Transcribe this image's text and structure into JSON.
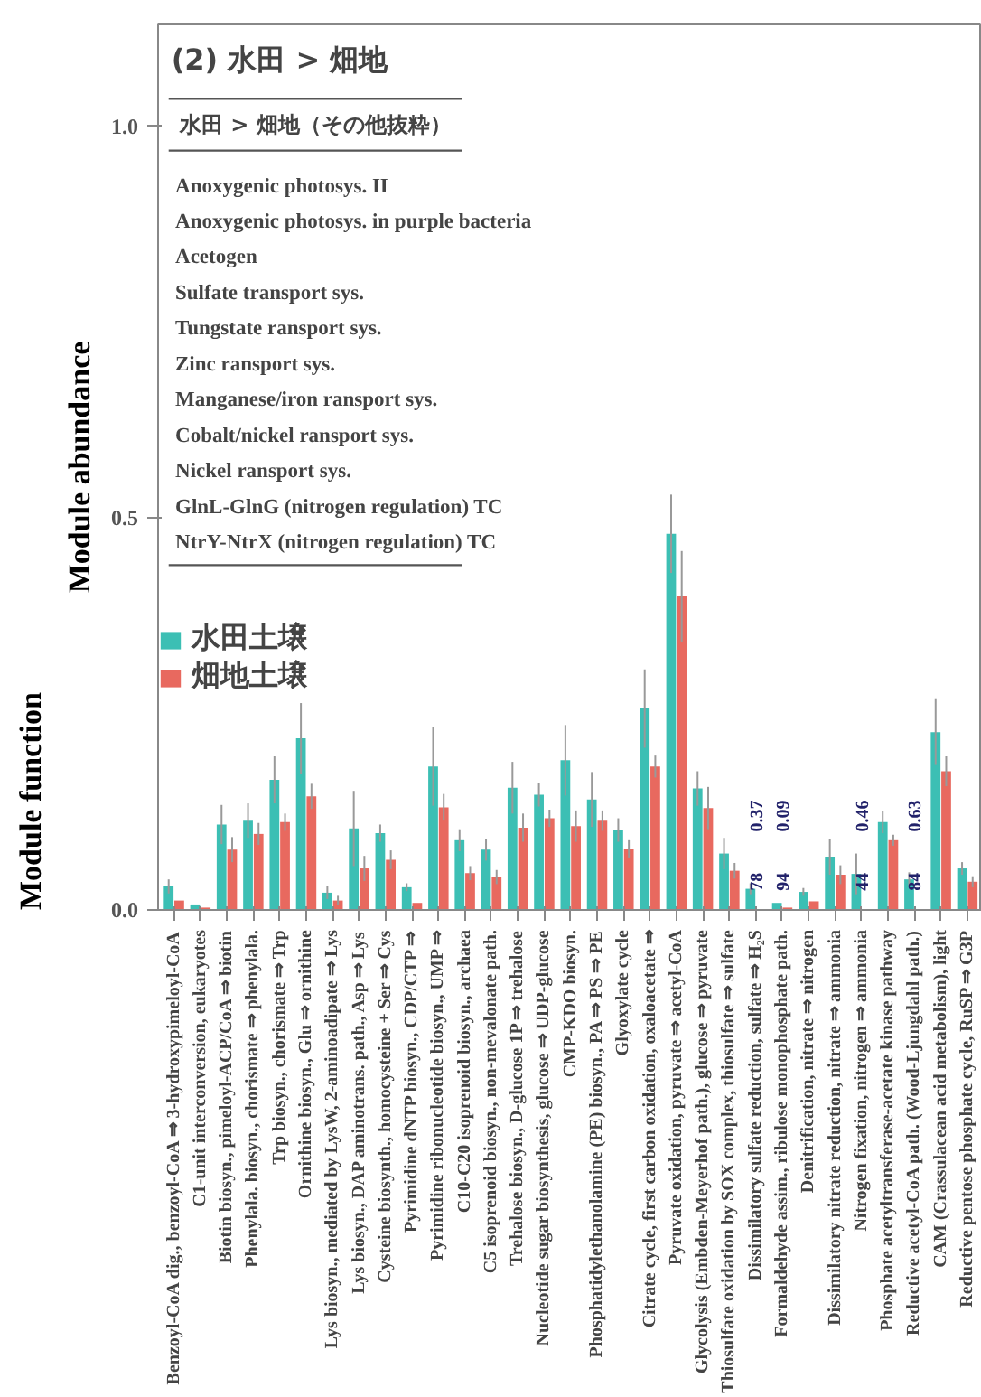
{
  "chart_data": {
    "type": "bar",
    "title": "(2) 水田 > 畑地",
    "ylabel": "Module abundance",
    "categories": [
      "Benzoyl-CoA dig., benzoyl-CoA ⇒ 3-hydroxypimeloyl-CoA",
      "C1-unit interconversion, eukaryotes",
      "Biotin biosyn., pimeloyl-ACP/CoA ⇒ biotin",
      "Phenylala. biosyn., chorismate ⇒ phenylala.",
      "Trp biosyn., chorismate ⇒ Trp",
      "Ornithine biosyn., Glu ⇒ ornithine",
      "Lys biosyn., mediated by LysW, 2-aminoadipate ⇒ Lys",
      "Lys biosyn., DAP aminotrans. path., Asp ⇒ Lys",
      "Cysteine biosynth., homocysteine + Ser ⇒ Cys",
      "Pyrimidine dNTP biosyn., CDP/CTP ⇒",
      "Pyrimidine ribonucleotide biosyn., UMP ⇒",
      "C10-C20 isoprenoid biosyn., archaea",
      "C5 isoprenoid biosyn., non-mevalonate path.",
      "Trehalose biosyn., D-glucose 1P ⇒ trehalose",
      "Nucleotide sugar biosynthesis, glucose ⇒ UDP-glucose",
      "CMP-KDO biosyn.",
      "Phosphatidylethanolamine (PE) biosyn., PA ⇒ PS ⇒ PE",
      "Glyoxylate cycle",
      "Citrate cycle, first carbon oxidation, oxaloacetate ⇒",
      "Pyruvate oxidation, pyruvate ⇒ acetyl-CoA",
      "Glycolysis (Embden-Meyerhof path.), glucose ⇒ pyruvate",
      "Thiosulfate oxidation by SOX complex, thiosulfate ⇒ sulfate",
      "Dissimilatory sulfate reduction, sulfate ⇒ H₂S",
      "Formaldehyde assim., ribulose monophosphate path.",
      "Denitrification, nitrate ⇒ nitrogen",
      "Dissimilatory nitrate reduction, nitrate ⇒ ammonia",
      "Nitrogen fixation, nitrogen ⇒ ammonia",
      "Phosphate acetyltransferase-acetate kinase pathway",
      "Reductive acetyl-CoA path. (Wood-Ljungdahl path.)",
      "CAM (Crassulacean acid metabolism), light",
      "Reductive pentose phosphate cycle, RuSP ⇒ G3P"
    ],
    "series": [
      {
        "name": "水田土壌",
        "color": "#3cbfb4",
        "values": [
          0.03,
          0.007,
          0.109,
          0.114,
          0.166,
          0.219,
          0.022,
          0.104,
          0.098,
          0.029,
          0.183,
          0.089,
          0.077,
          0.156,
          0.147,
          0.191,
          0.141,
          0.102,
          0.257,
          0.48,
          0.155,
          0.072,
          0.027,
          0.009,
          0.023,
          0.068,
          0.046,
          0.112,
          0.039,
          0.227,
          0.053
        ],
        "errors": [
          0.009,
          null,
          0.025,
          0.022,
          0.03,
          0.045,
          0.008,
          0.048,
          0.011,
          0.005,
          0.05,
          0.014,
          0.014,
          0.033,
          0.015,
          0.045,
          0.035,
          0.015,
          0.05,
          0.05,
          0.022,
          0.02,
          0.007,
          null,
          0.005,
          0.023,
          0.026,
          0.014,
          0.009,
          0.042,
          0.008
        ]
      },
      {
        "name": "畑地土壌",
        "color": "#e8695f",
        "values": [
          0.012,
          0.003,
          0.077,
          0.097,
          0.112,
          0.145,
          0.012,
          0.053,
          0.064,
          0.009,
          0.131,
          0.047,
          0.042,
          0.105,
          0.117,
          0.107,
          0.114,
          0.078,
          0.183,
          0.4,
          0.13,
          0.05,
          null,
          0.003,
          0.011,
          0.045,
          null,
          0.089,
          null,
          0.177,
          0.036
        ],
        "errors": [
          null,
          null,
          0.016,
          0.014,
          0.011,
          0.016,
          0.006,
          0.016,
          0.012,
          null,
          0.017,
          0.009,
          0.009,
          0.018,
          0.011,
          0.02,
          0.013,
          0.011,
          0.014,
          0.058,
          0.027,
          0.01,
          null,
          null,
          null,
          0.012,
          null,
          0.007,
          null,
          0.019,
          0.007
        ]
      }
    ],
    "ylim": [
      0,
      1.13
    ],
    "yticks": [
      {
        "value": 0,
        "label": "0.0"
      },
      {
        "value": 0.5,
        "label": "0.5"
      },
      {
        "value": 1,
        "label": "1.0"
      }
    ],
    "legend": "left",
    "grid": false,
    "annotations": [
      "水田 > 畑地（その他抜粋）",
      "Anoxygenic photosys. II",
      "Anoxygenic photosys.  in purple bacteria",
      "Acetogen",
      "Sulfate transport sys.",
      "Tungstate ransport sys.",
      "Zinc ransport sys.",
      "Manganese/iron ransport sys.",
      "Cobalt/nickel ransport sys.",
      "Nickel ransport sys.",
      "GlnL-GlnG (nitrogen regulation) TC",
      "NtrY-NtrX  (nitrogen regulation) TC",
      "0.37",
      "78",
      "0.09",
      "94",
      "0.46",
      "44",
      "0.63",
      "84",
      "Module function"
    ]
  }
}
